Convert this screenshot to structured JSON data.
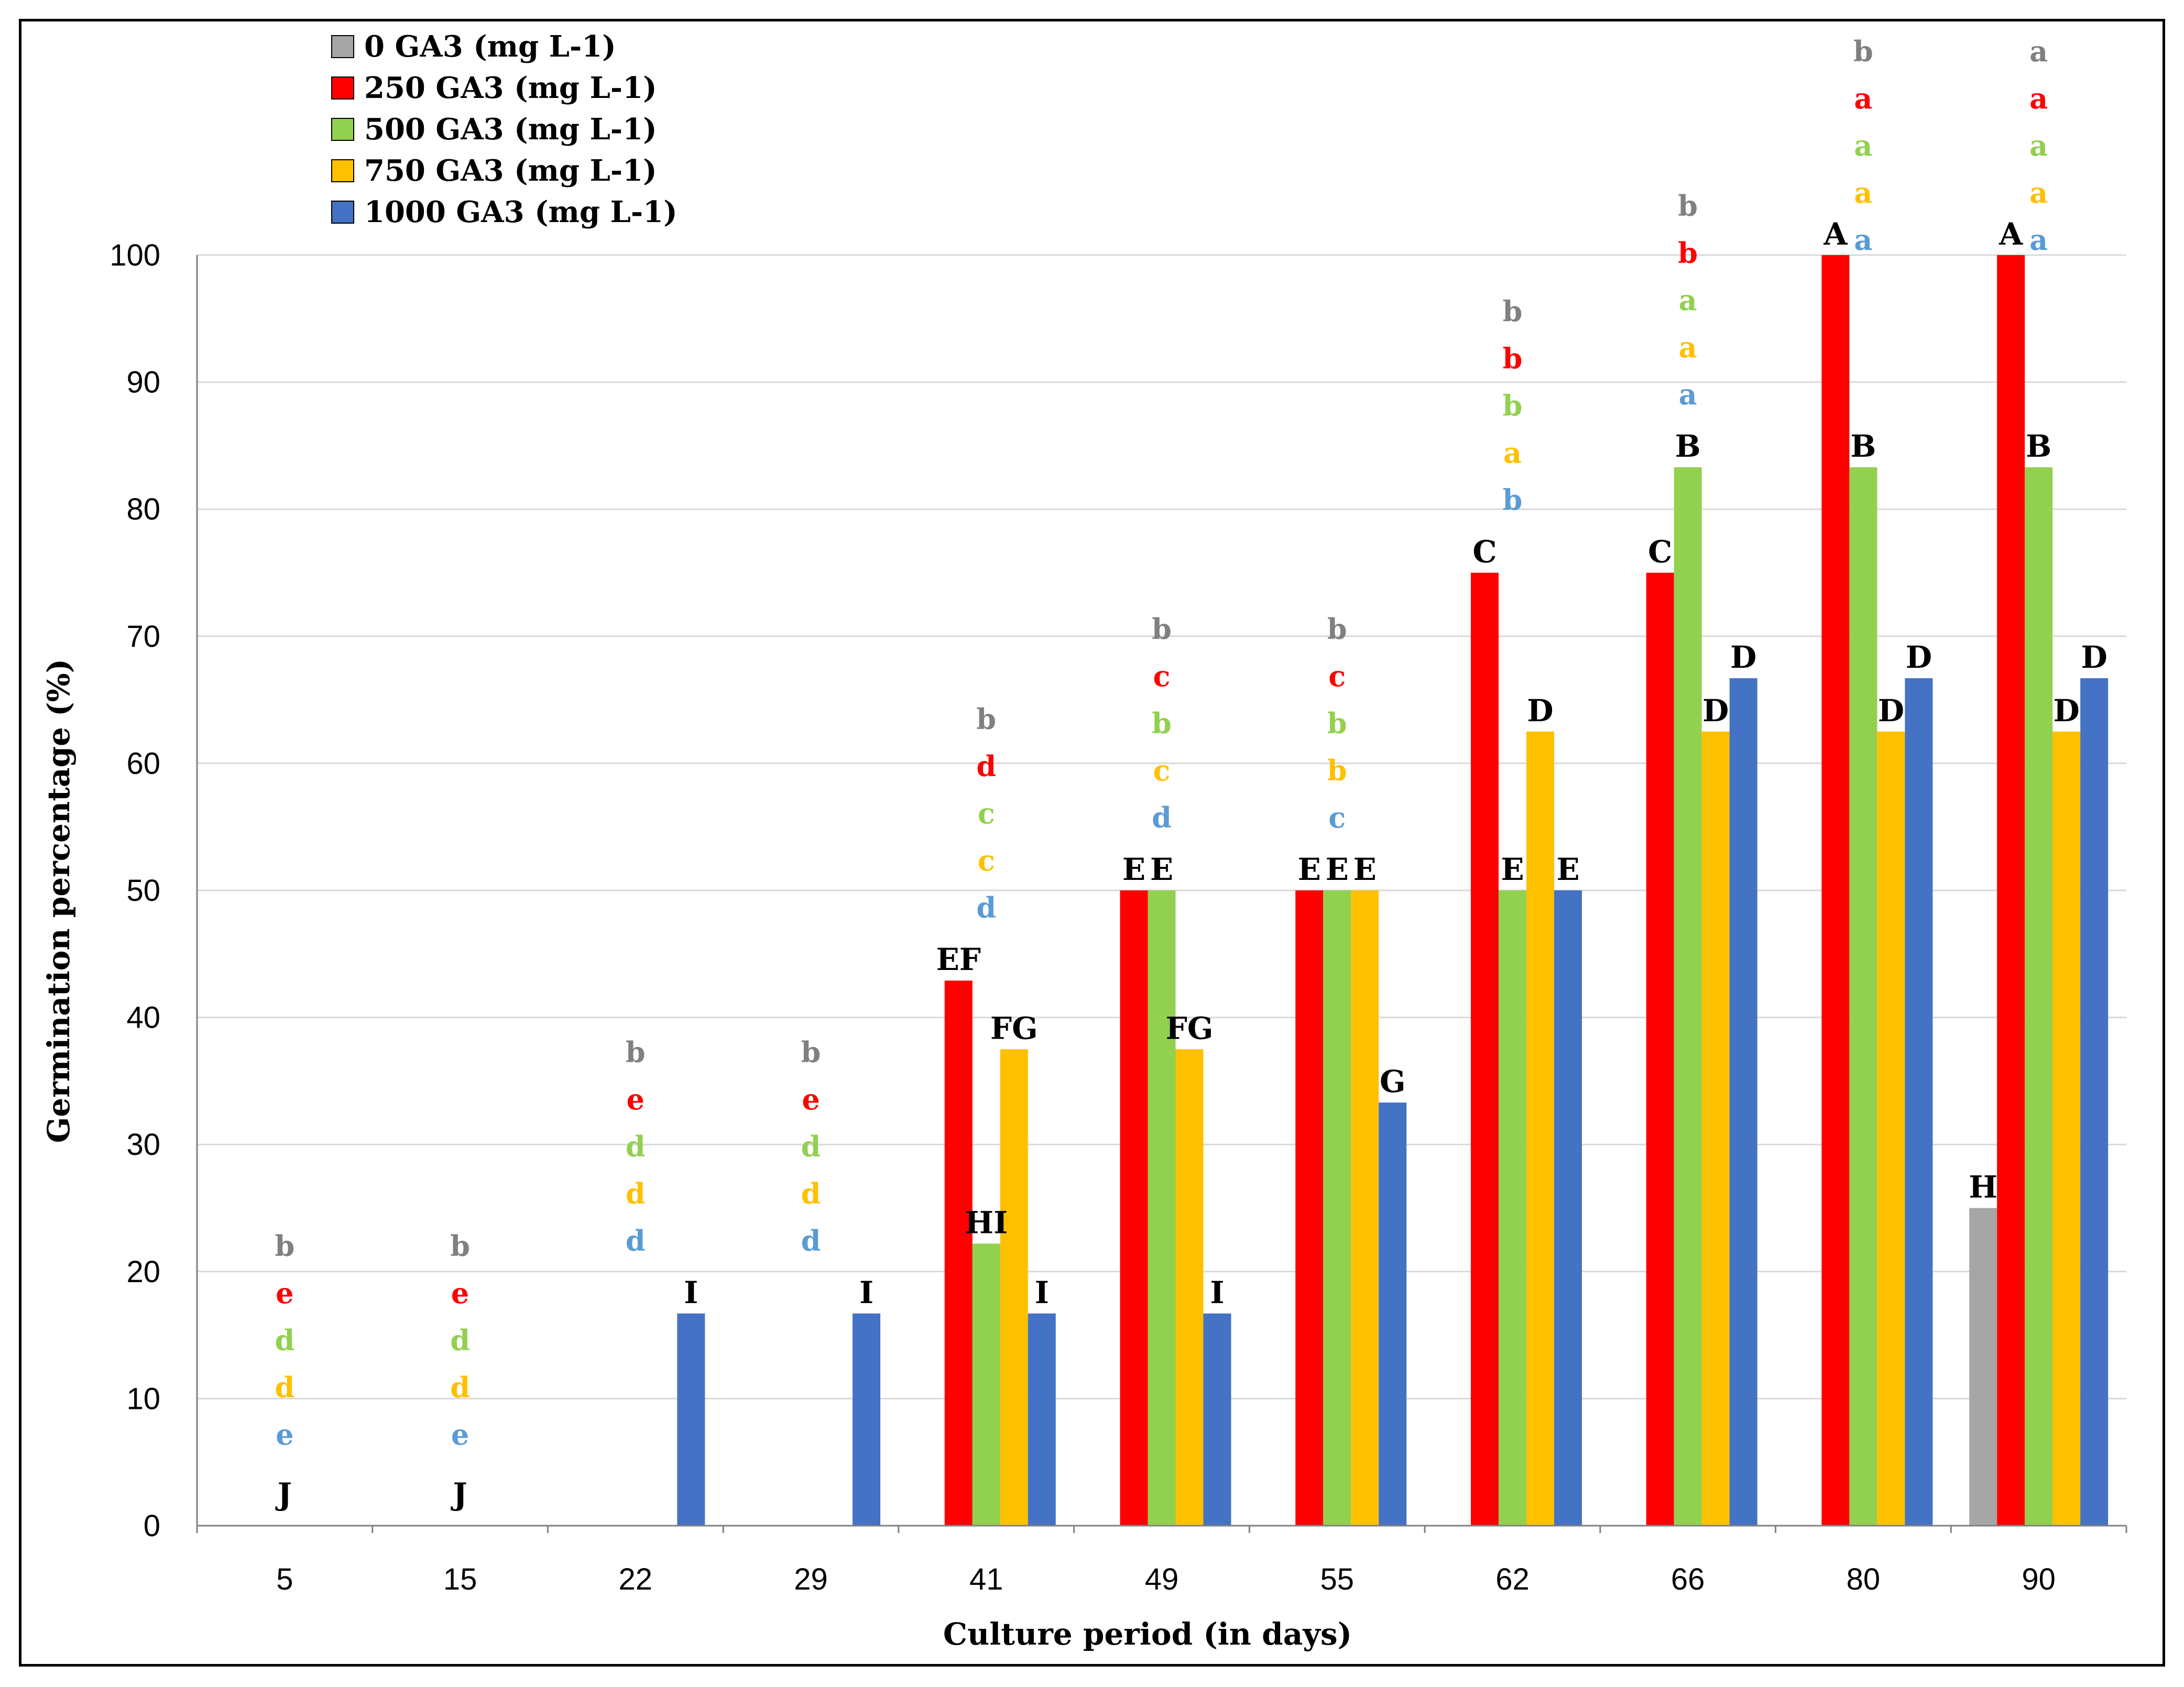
{
  "chart_data": {
    "type": "bar",
    "title": "",
    "xlabel": "Culture period (in days)",
    "ylabel": "Germination percentage (%)",
    "ylim": [
      0,
      100
    ],
    "yticks": [
      0,
      10,
      20,
      30,
      40,
      50,
      60,
      70,
      80,
      90,
      100
    ],
    "grid": true,
    "legend_position": "top-left",
    "categories": [
      "5",
      "15",
      "22",
      "29",
      "41",
      "49",
      "55",
      "62",
      "66",
      "80",
      "90"
    ],
    "series": [
      {
        "name": "0 GA3  (mg L-1)",
        "color": "#A6A6A6",
        "values": [
          0,
          0,
          0,
          0,
          0,
          0,
          0,
          0,
          0,
          0,
          25
        ],
        "labels": [
          "",
          "",
          "",
          "",
          "",
          "",
          "",
          "",
          "",
          "",
          "H"
        ]
      },
      {
        "name": "250  GA3 (mg L-1)",
        "color": "#FF0000",
        "values": [
          0,
          0,
          0,
          0,
          42.9,
          50,
          50,
          75,
          75,
          100,
          100
        ],
        "labels": [
          "",
          "",
          "",
          "",
          "EF",
          "E",
          "E",
          "C",
          "C",
          "A",
          "A"
        ]
      },
      {
        "name": "500  GA3 (mg L-1)",
        "color": "#92D050",
        "values": [
          0,
          0,
          0,
          0,
          22.2,
          50,
          50,
          50,
          83.3,
          83.3,
          83.3
        ],
        "labels": [
          "",
          "",
          "",
          "",
          "HI",
          "E",
          "E",
          "E",
          "B",
          "B",
          "B"
        ]
      },
      {
        "name": "750  GA3 (mg L-1)",
        "color": "#FFC000",
        "values": [
          0,
          0,
          0,
          0,
          37.5,
          37.5,
          50,
          62.5,
          62.5,
          62.5,
          62.5
        ],
        "labels": [
          "",
          "",
          "",
          "",
          "FG",
          "FG",
          "E",
          "D",
          "D",
          "D",
          "D"
        ]
      },
      {
        "name": "1000  GA3 (mg L-1)",
        "color": "#4472C4",
        "values": [
          0,
          0,
          16.7,
          16.7,
          16.7,
          16.7,
          33.3,
          50,
          66.7,
          66.7,
          66.7
        ],
        "labels": [
          "",
          "",
          "I",
          "I",
          "I",
          "I",
          "G",
          "E",
          "D",
          "D",
          "D"
        ]
      }
    ],
    "zero_labels": [
      "J",
      "J"
    ],
    "lowercase_groups": [
      [
        "b",
        "e",
        "d",
        "d",
        "e"
      ],
      [
        "b",
        "e",
        "d",
        "d",
        "e"
      ],
      [
        "b",
        "e",
        "d",
        "d",
        "d"
      ],
      [
        "b",
        "e",
        "d",
        "d",
        "d"
      ],
      [
        "b",
        "d",
        "c",
        "c",
        "d"
      ],
      [
        "b",
        "c",
        "b",
        "c",
        "d"
      ],
      [
        "b",
        "c",
        "b",
        "b",
        "c"
      ],
      [
        "b",
        "b",
        "b",
        "a",
        "b"
      ],
      [
        "b",
        "b",
        "a",
        "a",
        "a"
      ],
      [
        "b",
        "a",
        "a",
        "a",
        "a"
      ],
      [
        "a",
        "a",
        "a",
        "a",
        "a"
      ]
    ],
    "lowercase_colors": [
      "#808080",
      "#FF0000",
      "#92D050",
      "#FFC000",
      "#5B9BD5"
    ]
  }
}
